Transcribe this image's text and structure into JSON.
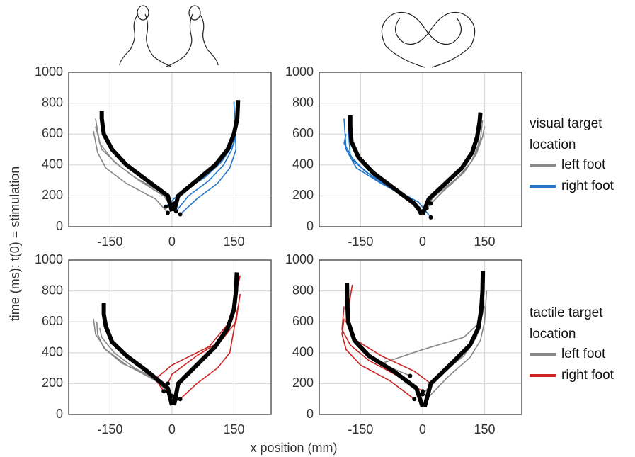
{
  "chart_data": [
    {
      "type": "line",
      "ylabel": "time (ms): t(0) = stimulation",
      "xlim": [
        -250,
        240
      ],
      "xticks": [
        -150,
        0,
        150
      ],
      "ylim": [
        0,
        1000
      ],
      "yticks": [
        0,
        200,
        400,
        600,
        800,
        1000
      ],
      "grid": true,
      "mean_color": "#000000",
      "series": [
        {
          "color": "#888888",
          "lines": [
            {
              "x": [
                0,
                -20,
                -80,
                -130,
                -170,
                -185
              ],
              "y": [
                120,
                200,
                300,
                400,
                500,
                650
              ]
            },
            {
              "x": [
                -10,
                -40,
                -110,
                -160,
                -180,
                -190
              ],
              "y": [
                90,
                180,
                280,
                380,
                480,
                620
              ]
            },
            {
              "x": [
                5,
                -30,
                -90,
                -140,
                -175,
                -185
              ],
              "y": [
                150,
                230,
                320,
                420,
                540,
                700
              ]
            }
          ]
        },
        {
          "color": "#2277cc",
          "lines": [
            {
              "x": [
                10,
                40,
                90,
                125,
                145,
                155
              ],
              "y": [
                100,
                200,
                300,
                400,
                500,
                600
              ]
            },
            {
              "x": [
                -15,
                20,
                80,
                120,
                150,
                160
              ],
              "y": [
                130,
                220,
                320,
                420,
                540,
                720
              ]
            },
            {
              "x": [
                20,
                60,
                110,
                140,
                155,
                150
              ],
              "y": [
                80,
                180,
                280,
                380,
                500,
                810
              ]
            }
          ]
        }
      ],
      "means": [
        {
          "x": [
            0,
            -10,
            -60,
            -110,
            -145,
            -165,
            -170,
            -170
          ],
          "y": [
            100,
            200,
            300,
            400,
            500,
            600,
            700,
            750
          ]
        },
        {
          "x": [
            5,
            15,
            60,
            105,
            135,
            150,
            158,
            160
          ],
          "y": [
            100,
            200,
            300,
            400,
            500,
            600,
            700,
            820
          ]
        }
      ]
    },
    {
      "type": "line",
      "legend_title": "visual target location",
      "xlim": [
        -250,
        240
      ],
      "xticks": [
        -150,
        0,
        150
      ],
      "ylim": [
        0,
        1000
      ],
      "yticks": [
        0,
        200,
        400,
        600,
        800,
        1000
      ],
      "grid": true,
      "mean_color": "#000000",
      "series": [
        {
          "name": "left foot",
          "color": "#888888",
          "lines": [
            {
              "x": [
                10,
                50,
                100,
                125,
                140,
                145
              ],
              "y": [
                120,
                230,
                350,
                450,
                560,
                690
              ]
            },
            {
              "x": [
                -5,
                30,
                85,
                118,
                135,
                140
              ],
              "y": [
                90,
                200,
                320,
                420,
                530,
                700
              ]
            },
            {
              "x": [
                20,
                60,
                105,
                130,
                145,
                150
              ],
              "y": [
                150,
                260,
                370,
                470,
                580,
                650
              ]
            }
          ]
        },
        {
          "name": "right foot",
          "color": "#2277cc",
          "lines": [
            {
              "x": [
                0,
                -30,
                -100,
                -160,
                -185,
                -190
              ],
              "y": [
                100,
                180,
                280,
                380,
                500,
                700
              ]
            },
            {
              "x": [
                20,
                -10,
                -80,
                -140,
                -175,
                -180
              ],
              "y": [
                60,
                160,
                260,
                360,
                460,
                640
              ]
            },
            {
              "x": [
                -10,
                -40,
                -110,
                -165,
                -190,
                -185
              ],
              "y": [
                120,
                200,
                300,
                420,
                540,
                600
              ]
            }
          ]
        }
      ],
      "means": [
        {
          "x": [
            0,
            -20,
            -70,
            -120,
            -155,
            -172,
            -175,
            -175
          ],
          "y": [
            80,
            150,
            250,
            350,
            450,
            550,
            650,
            720
          ]
        },
        {
          "x": [
            0,
            15,
            55,
            95,
            120,
            132,
            138,
            140
          ],
          "y": [
            80,
            180,
            280,
            380,
            480,
            580,
            680,
            740
          ]
        }
      ]
    },
    {
      "type": "line",
      "xlabel": "x position (mm)",
      "xlim": [
        -250,
        240
      ],
      "xticks": [
        -150,
        0,
        150
      ],
      "ylim": [
        0,
        1000
      ],
      "yticks": [
        0,
        200,
        400,
        600,
        800,
        1000
      ],
      "grid": true,
      "mean_color": "#000000",
      "series": [
        {
          "color": "#888888",
          "lines": [
            {
              "x": [
                0,
                -40,
                -110,
                -160,
                -185,
                -190
              ],
              "y": [
                120,
                220,
                320,
                420,
                520,
                620
              ]
            },
            {
              "x": [
                -10,
                -50,
                -120,
                -165,
                -180,
                -182
              ],
              "y": [
                150,
                250,
                330,
                430,
                520,
                600
              ]
            },
            {
              "x": [
                10,
                -20,
                -90,
                -140,
                -170,
                -175
              ],
              "y": [
                100,
                200,
                300,
                400,
                500,
                560
              ]
            }
          ]
        },
        {
          "color": "#cc2222",
          "lines": [
            {
              "x": [
                -20,
                -40,
                0,
                90,
                140,
                165
              ],
              "y": [
                150,
                230,
                320,
                440,
                600,
                900
              ]
            },
            {
              "x": [
                20,
                60,
                110,
                140,
                150,
                160
              ],
              "y": [
                100,
                200,
                300,
                400,
                550,
                700
              ]
            },
            {
              "x": [
                -10,
                0,
                60,
                120,
                155,
                165
              ],
              "y": [
                200,
                260,
                380,
                480,
                600,
                780
              ]
            }
          ]
        }
      ],
      "means": [
        {
          "x": [
            0,
            -10,
            -60,
            -110,
            -145,
            -160,
            -165,
            -165
          ],
          "y": [
            60,
            170,
            280,
            380,
            470,
            570,
            650,
            720
          ]
        },
        {
          "x": [
            5,
            15,
            60,
            105,
            135,
            150,
            155,
            157
          ],
          "y": [
            60,
            200,
            320,
            440,
            560,
            680,
            800,
            920
          ]
        }
      ]
    },
    {
      "type": "line",
      "legend_title": "tactile target location",
      "xlim": [
        -250,
        240
      ],
      "xticks": [
        -150,
        0,
        150
      ],
      "ylim": [
        0,
        1000
      ],
      "yticks": [
        0,
        200,
        400,
        600,
        800,
        1000
      ],
      "grid": true,
      "mean_color": "#000000",
      "series": [
        {
          "name": "left foot",
          "color": "#888888",
          "lines": [
            {
              "x": [
                0,
                40,
                100,
                130,
                145,
                150
              ],
              "y": [
                130,
                250,
                380,
                500,
                650,
                910
              ]
            },
            {
              "x": [
                -30,
                -100,
                0,
                100,
                140,
                150
              ],
              "y": [
                250,
                330,
                420,
                500,
                600,
                700
              ]
            },
            {
              "x": [
                10,
                60,
                115,
                140,
                150,
                155
              ],
              "y": [
                100,
                240,
                370,
                480,
                600,
                800
              ]
            }
          ]
        },
        {
          "name": "right foot",
          "color": "#cc2222",
          "lines": [
            {
              "x": [
                0,
                -60,
                -130,
                -175,
                -195,
                -190
              ],
              "y": [
                150,
                250,
                350,
                450,
                550,
                700
              ]
            },
            {
              "x": [
                20,
                -20,
                -100,
                -160,
                -185,
                -170
              ],
              "y": [
                200,
                280,
                380,
                480,
                600,
                840
              ]
            },
            {
              "x": [
                -20,
                -80,
                -150,
                -185,
                -195,
                -190
              ],
              "y": [
                100,
                220,
                320,
                420,
                520,
                620
              ]
            }
          ]
        }
      ],
      "means": [
        {
          "x": [
            0,
            -15,
            -70,
            -130,
            -165,
            -180,
            -182,
            -183
          ],
          "y": [
            50,
            170,
            280,
            380,
            480,
            600,
            720,
            850
          ]
        },
        {
          "x": [
            5,
            20,
            70,
            115,
            135,
            142,
            145,
            146
          ],
          "y": [
            50,
            200,
            330,
            450,
            560,
            680,
            800,
            930
          ]
        }
      ]
    }
  ]
}
